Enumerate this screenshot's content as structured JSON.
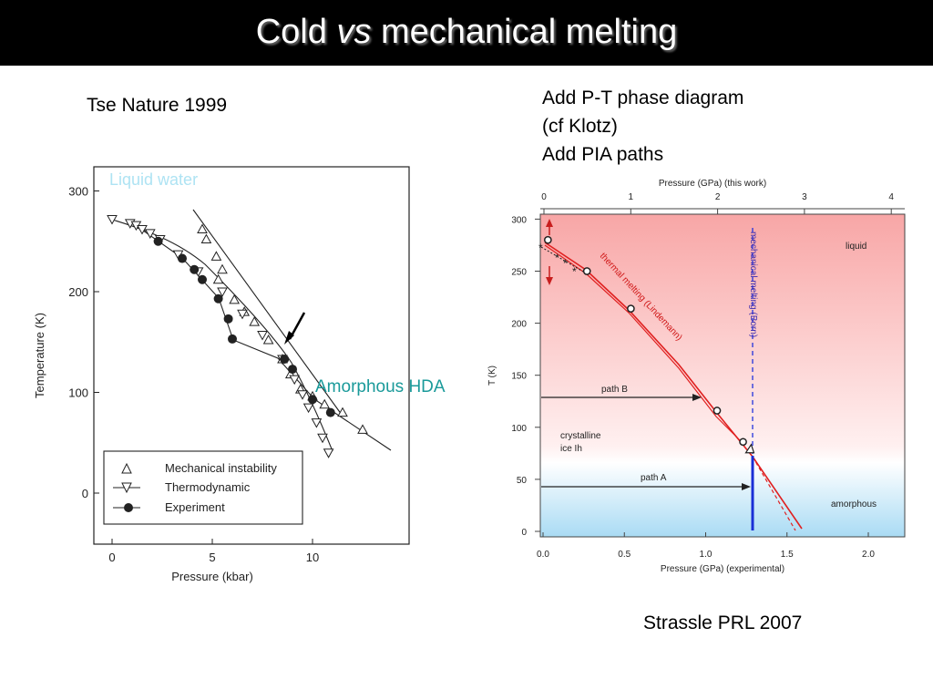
{
  "slide": {
    "title_part1": "Cold ",
    "title_italic": "vs",
    "title_part2": " mechanical melting",
    "left_caption": "Tse Nature 1999",
    "notes": [
      "Add P-T phase diagram",
      "(cf Klotz)",
      "Add PIA paths"
    ],
    "right_caption": "Strassle PRL 2007"
  },
  "chart_data": [
    {
      "type": "scatter",
      "title": "",
      "xlabel": "Pressure (kbar)",
      "ylabel": "Temperature (K)",
      "xlim": [
        -1,
        15
      ],
      "ylim": [
        -50,
        325
      ],
      "xticks": [
        "0",
        "5",
        "10"
      ],
      "yticks": [
        "0",
        "100",
        "200",
        "300"
      ],
      "overlay_labels": [
        "Liquid water",
        "Amorphous HDA"
      ],
      "legend": {
        "position": "bottom-left",
        "entries": [
          "Mechanical instability",
          "Thermodynamic",
          "Experiment"
        ]
      },
      "series": [
        {
          "name": "Mechanical instability",
          "marker": "triangle-up",
          "x": [
            4.5,
            4.7,
            5.2,
            5.5,
            5.3,
            6.1,
            6.6,
            7.1,
            7.8,
            8.5,
            8.9,
            9.4,
            10.0,
            10.6,
            11.5,
            12.5
          ],
          "y": [
            262,
            252,
            235,
            222,
            212,
            192,
            180,
            170,
            152,
            133,
            118,
            103,
            96,
            88,
            80,
            63
          ]
        },
        {
          "name": "Thermodynamic",
          "marker": "triangle-down",
          "x": [
            0,
            0.9,
            1.2,
            1.5,
            1.9,
            2.4,
            3.3,
            4.3,
            5.5,
            6.5,
            7.5,
            8.5,
            9.1,
            9.5,
            9.8,
            10.2,
            10.5,
            10.8
          ],
          "y": [
            272,
            268,
            266,
            262,
            258,
            252,
            237,
            220,
            200,
            178,
            157,
            133,
            113,
            98,
            85,
            70,
            55,
            40
          ]
        },
        {
          "name": "Experiment",
          "marker": "circle-filled",
          "x": [
            2.3,
            3.5,
            4.1,
            4.5,
            5.3,
            5.8,
            6.0,
            8.6,
            9.0,
            10.0,
            10.9
          ],
          "y": [
            250,
            233,
            222,
            212,
            193,
            173,
            153,
            133,
            123,
            93,
            80
          ]
        }
      ]
    },
    {
      "type": "line",
      "title": "",
      "xlabel": "Pressure (GPa) (experimental)",
      "ylabel": "T (K)",
      "x2label": "Pressure (GPa) (this work)",
      "xlim": [
        0,
        2.2
      ],
      "ylim": [
        0,
        300
      ],
      "x2lim": [
        0,
        4
      ],
      "xticks": [
        "0.0",
        "0.5",
        "1.0",
        "1.5",
        "2.0"
      ],
      "yticks": [
        "0",
        "50",
        "100",
        "150",
        "200",
        "250",
        "300"
      ],
      "x2ticks": [
        "0",
        "1",
        "2",
        "3",
        "4"
      ],
      "region_labels": [
        "liquid",
        "crystalline",
        "ice Ih",
        "amorphous"
      ],
      "curve_labels": [
        "thermal melting (Lindemann)",
        "mechanical melting (Born)"
      ],
      "path_labels": [
        "path B",
        "path A"
      ],
      "series": [
        {
          "name": "thermal melting (Lindemann)",
          "x": [
            0.03,
            0.27,
            0.54,
            0.85,
            1.07,
            1.28
          ],
          "y": [
            280,
            250,
            214,
            160,
            116,
            72
          ]
        },
        {
          "name": "",
          "x": [
            0.03,
            0.27,
            0.54,
            1.07,
            1.23
          ],
          "y": [
            279,
            250,
            214,
            116,
            86
          ]
        }
      ],
      "paths": [
        {
          "name": "path B",
          "x": [
            0.0,
            0.96
          ],
          "y": [
            130,
            130
          ]
        },
        {
          "name": "path A",
          "x": [
            0.0,
            1.26
          ],
          "y": [
            43,
            43
          ]
        }
      ]
    }
  ]
}
